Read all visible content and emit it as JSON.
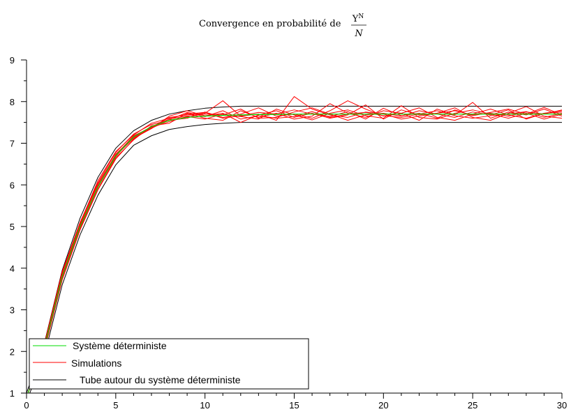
{
  "chart_data": {
    "type": "line",
    "title": {
      "prefix": "Convergence en probabilité de",
      "fraction_numerator": "Y",
      "numerator_superscript": "N",
      "fraction_denominator": "N"
    },
    "xlabel": "",
    "ylabel": "",
    "xlim": [
      0,
      30
    ],
    "ylim": [
      1,
      9
    ],
    "xticks": [
      0,
      5,
      10,
      15,
      20,
      25,
      30
    ],
    "yticks": [
      1,
      2,
      3,
      4,
      5,
      6,
      7,
      8,
      9
    ],
    "grid": false,
    "legend": {
      "position": "bottom-left",
      "entries": [
        {
          "label": "Système déterministe",
          "color": "#00dd00"
        },
        {
          "label": "Simulations",
          "color": "#ff0000"
        },
        {
          "label": "Tube autour du système déterministe",
          "color": "#000000"
        }
      ]
    },
    "x": [
      0,
      1,
      2,
      3,
      4,
      5,
      6,
      7,
      8,
      9,
      10,
      11,
      12,
      13,
      14,
      15,
      16,
      17,
      18,
      19,
      20,
      21,
      22,
      23,
      24,
      25,
      26,
      27,
      28,
      29,
      30
    ],
    "deterministic": {
      "color": "#00dd00",
      "values": [
        0.9,
        2.1,
        3.8,
        5.0,
        5.95,
        6.7,
        7.15,
        7.4,
        7.55,
        7.62,
        7.65,
        7.67,
        7.68,
        7.69,
        7.69,
        7.7,
        7.7,
        7.7,
        7.7,
        7.7,
        7.7,
        7.7,
        7.7,
        7.7,
        7.7,
        7.7,
        7.7,
        7.7,
        7.7,
        7.7,
        7.7
      ]
    },
    "tube": {
      "color": "#000000",
      "upper": [
        1.0,
        2.2,
        3.95,
        5.2,
        6.18,
        6.88,
        7.3,
        7.55,
        7.7,
        7.78,
        7.84,
        7.87,
        7.89,
        7.89,
        7.89,
        7.89,
        7.89,
        7.89,
        7.89,
        7.89,
        7.89,
        7.89,
        7.89,
        7.89,
        7.89,
        7.89,
        7.89,
        7.89,
        7.89,
        7.89,
        7.89
      ],
      "lower": [
        0.8,
        1.9,
        3.6,
        4.8,
        5.75,
        6.48,
        6.95,
        7.18,
        7.33,
        7.4,
        7.45,
        7.48,
        7.5,
        7.5,
        7.5,
        7.5,
        7.5,
        7.5,
        7.5,
        7.5,
        7.5,
        7.5,
        7.5,
        7.5,
        7.5,
        7.5,
        7.5,
        7.5,
        7.5,
        7.5,
        7.5
      ]
    },
    "simulations": {
      "color": "#ff0000",
      "series": [
        [
          0.9,
          2.12,
          3.85,
          5.05,
          6.02,
          6.72,
          7.18,
          7.38,
          7.62,
          7.68,
          7.72,
          8.02,
          7.65,
          7.7,
          7.55,
          8.12,
          7.82,
          7.68,
          7.62,
          7.75,
          7.7,
          7.58,
          7.65,
          7.72,
          7.78,
          7.68,
          7.72,
          7.65,
          7.75,
          7.7,
          7.8
        ],
        [
          0.9,
          2.05,
          3.75,
          4.95,
          5.9,
          6.65,
          7.08,
          7.42,
          7.48,
          7.72,
          7.6,
          7.55,
          7.78,
          7.62,
          7.72,
          7.58,
          7.65,
          7.95,
          7.72,
          7.62,
          7.78,
          7.72,
          7.55,
          7.82,
          7.68,
          7.98,
          7.6,
          7.75,
          7.68,
          7.82,
          7.65
        ],
        [
          0.9,
          2.15,
          3.9,
          5.1,
          6.05,
          6.78,
          7.22,
          7.45,
          7.55,
          7.6,
          7.75,
          7.62,
          7.7,
          7.85,
          7.65,
          7.7,
          7.6,
          7.78,
          8.02,
          7.82,
          7.65,
          7.72,
          7.85,
          7.62,
          7.55,
          7.7,
          7.82,
          7.68,
          7.6,
          7.72,
          7.75
        ],
        [
          0.9,
          2.08,
          3.82,
          5.0,
          5.98,
          6.7,
          7.12,
          7.35,
          7.65,
          7.78,
          7.66,
          7.72,
          7.5,
          7.68,
          7.78,
          7.62,
          7.72,
          7.6,
          7.68,
          7.92,
          7.58,
          7.8,
          7.68,
          7.72,
          7.85,
          7.62,
          7.55,
          7.72,
          7.88,
          7.65,
          7.6
        ],
        [
          0.9,
          2.1,
          3.78,
          4.98,
          5.95,
          6.68,
          7.16,
          7.4,
          7.58,
          7.65,
          7.7,
          7.68,
          7.82,
          7.6,
          7.62,
          7.75,
          7.85,
          7.7,
          7.55,
          7.68,
          7.72,
          7.65,
          7.78,
          7.7,
          7.62,
          7.75,
          7.68,
          7.8,
          7.58,
          7.72,
          7.78
        ],
        [
          0.9,
          2.02,
          3.72,
          4.92,
          5.88,
          6.62,
          7.1,
          7.38,
          7.52,
          7.64,
          7.58,
          7.7,
          7.64,
          7.58,
          7.82,
          7.68,
          7.56,
          7.72,
          7.8,
          7.66,
          7.6,
          7.9,
          7.62,
          7.58,
          7.72,
          7.8,
          7.7,
          7.6,
          7.72,
          7.58,
          7.7
        ],
        [
          0.9,
          2.18,
          3.92,
          5.08,
          6.1,
          6.8,
          7.2,
          7.48,
          7.6,
          7.7,
          7.74,
          7.6,
          7.66,
          7.74,
          7.7,
          7.8,
          7.7,
          7.64,
          7.76,
          7.58,
          7.84,
          7.66,
          7.72,
          7.6,
          7.8,
          7.66,
          7.74,
          7.82,
          7.7,
          7.86,
          7.68
        ],
        [
          0.9,
          2.06,
          3.8,
          5.02,
          5.96,
          6.74,
          7.14,
          7.36,
          7.56,
          7.74,
          7.64,
          7.78,
          7.58,
          7.66,
          7.6,
          7.64,
          7.76,
          7.62,
          7.7,
          7.74,
          7.66,
          7.62,
          7.7,
          7.78,
          7.66,
          7.6,
          7.66,
          7.7,
          7.76,
          7.62,
          7.72
        ]
      ]
    }
  }
}
